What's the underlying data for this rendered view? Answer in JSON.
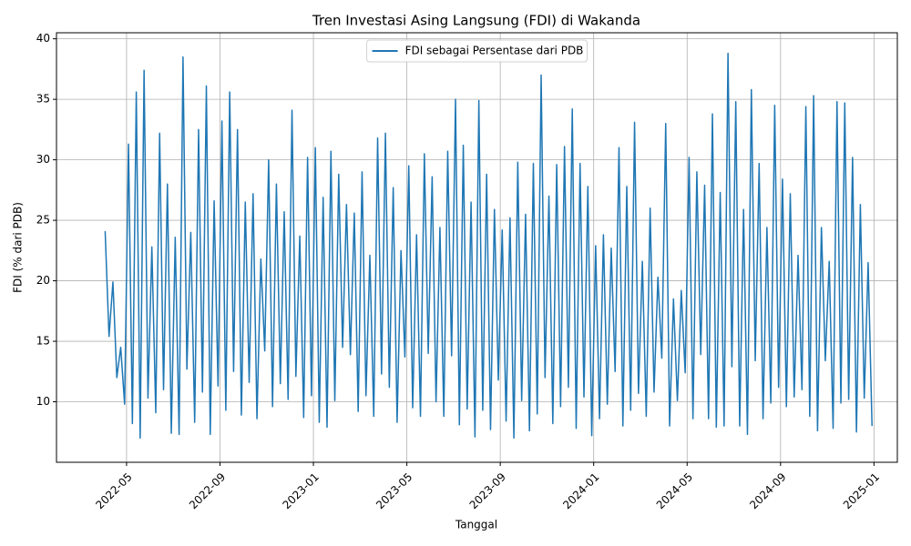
{
  "chart_data": {
    "type": "line",
    "title": "Tren Investasi Asing Langsung (FDI) di Wakanda",
    "x_label": "Tanggal",
    "y_label": "FDI (% dari PDB)",
    "x": [
      "2022-04",
      "2022-04",
      "2022-04",
      "2022-04",
      "2022-04",
      "2022-04",
      "2022-05",
      "2022-05",
      "2022-05",
      "2022-05",
      "2022-05",
      "2022-05",
      "2022-06",
      "2022-06",
      "2022-06",
      "2022-06",
      "2022-06",
      "2022-06",
      "2022-07",
      "2022-07",
      "2022-07",
      "2022-07",
      "2022-07",
      "2022-07",
      "2022-08",
      "2022-08",
      "2022-08",
      "2022-08",
      "2022-08",
      "2022-08",
      "2022-09",
      "2022-09",
      "2022-09",
      "2022-09",
      "2022-09",
      "2022-09",
      "2022-10",
      "2022-10",
      "2022-10",
      "2022-10",
      "2022-10",
      "2022-10",
      "2022-11",
      "2022-11",
      "2022-11",
      "2022-11",
      "2022-11",
      "2022-11",
      "2022-12",
      "2022-12",
      "2022-12",
      "2022-12",
      "2022-12",
      "2022-12",
      "2023-01",
      "2023-01",
      "2023-01",
      "2023-01",
      "2023-01",
      "2023-01",
      "2023-02",
      "2023-02",
      "2023-02",
      "2023-02",
      "2023-02",
      "2023-02",
      "2023-03",
      "2023-03",
      "2023-03",
      "2023-03",
      "2023-03",
      "2023-03",
      "2023-04",
      "2023-04",
      "2023-04",
      "2023-04",
      "2023-04",
      "2023-04",
      "2023-05",
      "2023-05",
      "2023-05",
      "2023-05",
      "2023-05",
      "2023-05",
      "2023-06",
      "2023-06",
      "2023-06",
      "2023-06",
      "2023-06",
      "2023-06",
      "2023-07",
      "2023-07",
      "2023-07",
      "2023-07",
      "2023-07",
      "2023-07",
      "2023-08",
      "2023-08",
      "2023-08",
      "2023-08",
      "2023-08",
      "2023-08",
      "2023-09",
      "2023-09",
      "2023-09",
      "2023-09",
      "2023-09",
      "2023-09",
      "2023-10",
      "2023-10",
      "2023-10",
      "2023-10",
      "2023-10",
      "2023-10",
      "2023-11",
      "2023-11",
      "2023-11",
      "2023-11",
      "2023-11",
      "2023-11",
      "2023-12",
      "2023-12",
      "2023-12",
      "2023-12",
      "2023-12",
      "2023-12",
      "2024-01",
      "2024-01",
      "2024-01",
      "2024-01",
      "2024-01",
      "2024-01",
      "2024-02",
      "2024-02",
      "2024-02",
      "2024-02",
      "2024-02",
      "2024-02",
      "2024-03",
      "2024-03",
      "2024-03",
      "2024-03",
      "2024-03",
      "2024-03",
      "2024-04",
      "2024-04",
      "2024-04",
      "2024-04",
      "2024-04",
      "2024-04",
      "2024-05",
      "2024-05",
      "2024-05",
      "2024-05",
      "2024-05",
      "2024-05",
      "2024-06",
      "2024-06",
      "2024-06",
      "2024-06",
      "2024-06",
      "2024-06",
      "2024-07",
      "2024-07",
      "2024-07",
      "2024-07",
      "2024-07",
      "2024-07",
      "2024-08",
      "2024-08",
      "2024-08",
      "2024-08",
      "2024-08",
      "2024-08",
      "2024-09",
      "2024-09",
      "2024-09",
      "2024-09",
      "2024-09",
      "2024-09",
      "2024-10",
      "2024-10",
      "2024-10",
      "2024-10",
      "2024-10",
      "2024-10",
      "2024-11",
      "2024-11",
      "2024-11",
      "2024-11",
      "2024-11",
      "2024-11",
      "2024-12",
      "2024-12",
      "2024-12",
      "2024-12",
      "2024-12",
      "2024-12"
    ],
    "series": [
      {
        "name": "FDI sebagai Persentase dari PDB",
        "color": "#1f77b4",
        "values": [
          24.1,
          15.4,
          19.9,
          12.0,
          14.5,
          9.8,
          31.3,
          8.2,
          35.6,
          7.0,
          37.4,
          10.3,
          22.8,
          9.1,
          32.2,
          11.0,
          28.0,
          7.4,
          23.6,
          7.3,
          38.5,
          12.7,
          24.0,
          8.3,
          32.5,
          10.8,
          36.1,
          7.3,
          26.6,
          11.3,
          33.2,
          9.3,
          35.6,
          12.5,
          32.5,
          8.9,
          26.5,
          11.6,
          27.2,
          8.6,
          21.8,
          14.2,
          30.0,
          9.6,
          28.0,
          11.5,
          25.7,
          10.2,
          34.1,
          12.1,
          23.7,
          8.7,
          30.2,
          10.5,
          31.0,
          8.3,
          26.9,
          7.9,
          30.7,
          10.1,
          28.8,
          14.5,
          26.3,
          13.9,
          25.6,
          9.2,
          29.0,
          10.5,
          22.1,
          8.8,
          31.8,
          12.3,
          32.2,
          11.2,
          27.7,
          8.3,
          22.5,
          13.7,
          29.5,
          9.5,
          23.8,
          8.8,
          30.5,
          14.0,
          28.6,
          10.0,
          24.4,
          8.8,
          30.7,
          13.8,
          35.0,
          8.1,
          31.2,
          9.4,
          26.5,
          7.1,
          34.9,
          9.3,
          28.8,
          7.7,
          25.9,
          11.8,
          24.2,
          8.4,
          25.2,
          7.0,
          29.8,
          10.1,
          25.5,
          7.6,
          29.7,
          9.0,
          37.0,
          12.0,
          27.0,
          8.2,
          29.6,
          9.6,
          31.1,
          11.2,
          34.2,
          7.8,
          29.7,
          10.4,
          27.8,
          7.2,
          22.9,
          8.6,
          23.8,
          9.8,
          22.7,
          12.5,
          31.0,
          8.0,
          27.8,
          9.3,
          33.1,
          10.7,
          21.6,
          8.8,
          26.0,
          10.8,
          20.3,
          13.6,
          33.0,
          8.0,
          18.5,
          10.1,
          19.2,
          12.4,
          30.2,
          8.6,
          29.0,
          13.9,
          27.9,
          8.6,
          33.8,
          7.9,
          27.3,
          8.0,
          38.8,
          12.9,
          34.8,
          8.0,
          25.9,
          7.3,
          35.8,
          13.4,
          29.7,
          8.6,
          24.4,
          9.9,
          34.5,
          11.2,
          28.4,
          9.6,
          27.2,
          10.4,
          22.1,
          11.0,
          34.4,
          8.8,
          35.3,
          7.6,
          24.4,
          13.4,
          21.6,
          7.8,
          34.8,
          9.9,
          34.7,
          10.2,
          30.2,
          7.5,
          26.3,
          10.3,
          21.5,
          8.0
        ]
      }
    ],
    "xlim": [
      "2022-02",
      "2025-02"
    ],
    "xticks": [
      "2022-05",
      "2022-09",
      "2023-01",
      "2023-05",
      "2023-09",
      "2024-01",
      "2024-05",
      "2024-09",
      "2025-01"
    ],
    "ylim": [
      5,
      40.5
    ],
    "yticks": [
      10,
      15,
      20,
      25,
      30,
      35,
      40
    ],
    "grid": true,
    "legend": "upper center"
  }
}
